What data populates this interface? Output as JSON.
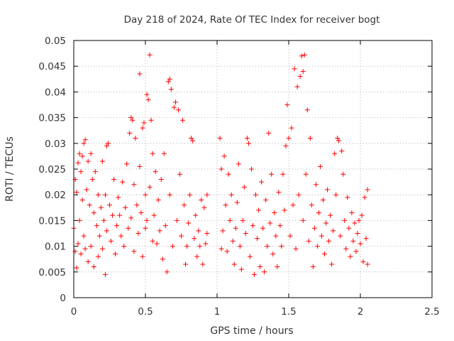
{
  "chart_data": {
    "type": "scatter",
    "title": "Day 218 of 2024, Rate Of TEC Index for receiver bogt",
    "xlabel": "GPS time / hours",
    "ylabel": "ROTI / TECUs",
    "xlim": [
      0,
      2.5
    ],
    "ylim": [
      0,
      0.05
    ],
    "xticks": [
      "0",
      "0.5",
      "1",
      "1.5",
      "2",
      "2.5"
    ],
    "xtick_values": [
      0,
      0.5,
      1,
      1.5,
      2,
      2.5
    ],
    "yticks": [
      "0",
      "0.005",
      "0.01",
      "0.015",
      "0.02",
      "0.025",
      "0.03",
      "0.035",
      "0.04",
      "0.045",
      "0.05"
    ],
    "ytick_values": [
      0,
      0.005,
      0.01,
      0.015,
      0.02,
      0.025,
      0.03,
      0.035,
      0.04,
      0.045,
      0.05
    ],
    "grid": true,
    "marker": "+",
    "color": "#ff0000",
    "series": [
      {
        "points": [
          [
            0.0,
            0.0135
          ],
          [
            0.01,
            0.009
          ],
          [
            0.01,
            0.023
          ],
          [
            0.02,
            0.0058
          ],
          [
            0.02,
            0.0205
          ],
          [
            0.03,
            0.0105
          ],
          [
            0.03,
            0.0262
          ],
          [
            0.04,
            0.015
          ],
          [
            0.04,
            0.028
          ],
          [
            0.05,
            0.0085
          ],
          [
            0.05,
            0.0245
          ],
          [
            0.06,
            0.019
          ],
          [
            0.06,
            0.0275
          ],
          [
            0.07,
            0.03
          ],
          [
            0.07,
            0.012
          ],
          [
            0.08,
            0.0307
          ],
          [
            0.08,
            0.0095
          ],
          [
            0.09,
            0.021
          ],
          [
            0.1,
            0.0265
          ],
          [
            0.1,
            0.007
          ],
          [
            0.11,
            0.018
          ],
          [
            0.12,
            0.028
          ],
          [
            0.12,
            0.01
          ],
          [
            0.13,
            0.023
          ],
          [
            0.14,
            0.0165
          ],
          [
            0.14,
            0.006
          ],
          [
            0.15,
            0.0245
          ],
          [
            0.16,
            0.014
          ],
          [
            0.17,
            0.02
          ],
          [
            0.17,
            0.008
          ],
          [
            0.18,
            0.012
          ],
          [
            0.19,
            0.0175
          ],
          [
            0.2,
            0.0265
          ],
          [
            0.2,
            0.0095
          ],
          [
            0.21,
            0.015
          ],
          [
            0.22,
            0.0045
          ],
          [
            0.22,
            0.02
          ],
          [
            0.23,
            0.0295
          ],
          [
            0.23,
            0.013
          ],
          [
            0.24,
            0.03
          ],
          [
            0.25,
            0.018
          ],
          [
            0.26,
            0.011
          ],
          [
            0.27,
            0.016
          ],
          [
            0.28,
            0.023
          ],
          [
            0.29,
            0.0085
          ],
          [
            0.3,
            0.014
          ],
          [
            0.31,
            0.0195
          ],
          [
            0.32,
            0.016
          ],
          [
            0.33,
            0.012
          ],
          [
            0.34,
            0.0225
          ],
          [
            0.35,
            0.01
          ],
          [
            0.36,
            0.0175
          ],
          [
            0.37,
            0.026
          ],
          [
            0.38,
            0.0135
          ],
          [
            0.39,
            0.032
          ],
          [
            0.4,
            0.035
          ],
          [
            0.4,
            0.0155
          ],
          [
            0.41,
            0.0345
          ],
          [
            0.42,
            0.009
          ],
          [
            0.42,
            0.022
          ],
          [
            0.43,
            0.031
          ],
          [
            0.44,
            0.018
          ],
          [
            0.45,
            0.0125
          ],
          [
            0.46,
            0.0435
          ],
          [
            0.46,
            0.0255
          ],
          [
            0.47,
            0.0165
          ],
          [
            0.48,
            0.033
          ],
          [
            0.48,
            0.008
          ],
          [
            0.49,
            0.034
          ],
          [
            0.5,
            0.02
          ],
          [
            0.5,
            0.0135
          ],
          [
            0.51,
            0.0395
          ],
          [
            0.51,
            0.015
          ],
          [
            0.52,
            0.0385
          ],
          [
            0.53,
            0.0472
          ],
          [
            0.53,
            0.0215
          ],
          [
            0.54,
            0.0345
          ],
          [
            0.55,
            0.028
          ],
          [
            0.55,
            0.011
          ],
          [
            0.56,
            0.016
          ],
          [
            0.57,
            0.0245
          ],
          [
            0.58,
            0.0105
          ],
          [
            0.59,
            0.019
          ],
          [
            0.6,
            0.013
          ],
          [
            0.61,
            0.023
          ],
          [
            0.62,
            0.0075
          ],
          [
            0.63,
            0.028
          ],
          [
            0.64,
            0.014
          ],
          [
            0.65,
            0.005
          ],
          [
            0.66,
            0.042
          ],
          [
            0.67,
            0.0425
          ],
          [
            0.67,
            0.02
          ],
          [
            0.68,
            0.0405
          ],
          [
            0.69,
            0.01
          ],
          [
            0.7,
            0.037
          ],
          [
            0.71,
            0.038
          ],
          [
            0.72,
            0.015
          ],
          [
            0.73,
            0.0365
          ],
          [
            0.74,
            0.024
          ],
          [
            0.75,
            0.012
          ],
          [
            0.76,
            0.0345
          ],
          [
            0.77,
            0.018
          ],
          [
            0.78,
            0.0065
          ],
          [
            0.79,
            0.01
          ],
          [
            0.8,
            0.0145
          ],
          [
            0.81,
            0.02
          ],
          [
            0.82,
            0.031
          ],
          [
            0.83,
            0.0305
          ],
          [
            0.84,
            0.0115
          ],
          [
            0.85,
            0.016
          ],
          [
            0.86,
            0.008
          ],
          [
            0.87,
            0.013
          ],
          [
            0.88,
            0.01
          ],
          [
            0.89,
            0.019
          ],
          [
            0.9,
            0.0065
          ],
          [
            0.91,
            0.0175
          ],
          [
            0.92,
            0.0105
          ],
          [
            0.93,
            0.02
          ],
          [
            0.93,
            0.0125
          ],
          [
            1.02,
            0.031
          ],
          [
            1.03,
            0.0095
          ],
          [
            1.03,
            0.025
          ],
          [
            1.04,
            0.013
          ],
          [
            1.05,
            0.0275
          ],
          [
            1.06,
            0.018
          ],
          [
            1.07,
            0.009
          ],
          [
            1.08,
            0.024
          ],
          [
            1.09,
            0.015
          ],
          [
            1.1,
            0.02
          ],
          [
            1.11,
            0.011
          ],
          [
            1.12,
            0.0065
          ],
          [
            1.13,
            0.0135
          ],
          [
            1.14,
            0.0185
          ],
          [
            1.15,
            0.026
          ],
          [
            1.16,
            0.01
          ],
          [
            1.17,
            0.0055
          ],
          [
            1.18,
            0.015
          ],
          [
            1.19,
            0.0215
          ],
          [
            1.2,
            0.0125
          ],
          [
            1.21,
            0.031
          ],
          [
            1.22,
            0.03
          ],
          [
            1.23,
            0.008
          ],
          [
            1.24,
            0.025
          ],
          [
            1.25,
            0.014
          ],
          [
            1.26,
            0.0045
          ],
          [
            1.27,
            0.02
          ],
          [
            1.28,
            0.0115
          ],
          [
            1.29,
            0.017
          ],
          [
            1.3,
            0.006
          ],
          [
            1.31,
            0.0225
          ],
          [
            1.32,
            0.0135
          ],
          [
            1.33,
            0.005
          ],
          [
            1.34,
            0.019
          ],
          [
            1.35,
            0.01
          ],
          [
            1.36,
            0.032
          ],
          [
            1.37,
            0.0145
          ],
          [
            1.38,
            0.024
          ],
          [
            1.39,
            0.0085
          ],
          [
            1.4,
            0.0165
          ],
          [
            1.41,
            0.012
          ],
          [
            1.42,
            0.006
          ],
          [
            1.43,
            0.0205
          ],
          [
            1.44,
            0.014
          ],
          [
            1.45,
            0.01
          ],
          [
            1.46,
            0.024
          ],
          [
            1.47,
            0.017
          ],
          [
            1.48,
            0.0295
          ],
          [
            1.49,
            0.0375
          ],
          [
            1.5,
            0.031
          ],
          [
            1.51,
            0.012
          ],
          [
            1.52,
            0.033
          ],
          [
            1.53,
            0.018
          ],
          [
            1.54,
            0.0445
          ],
          [
            1.55,
            0.0095
          ],
          [
            1.56,
            0.041
          ],
          [
            1.57,
            0.02
          ],
          [
            1.58,
            0.043
          ],
          [
            1.59,
            0.047
          ],
          [
            1.6,
            0.044
          ],
          [
            1.6,
            0.015
          ],
          [
            1.61,
            0.0472
          ],
          [
            1.62,
            0.024
          ],
          [
            1.63,
            0.0365
          ],
          [
            1.64,
            0.011
          ],
          [
            1.65,
            0.031
          ],
          [
            1.66,
            0.018
          ],
          [
            1.67,
            0.006
          ],
          [
            1.68,
            0.0135
          ],
          [
            1.69,
            0.022
          ],
          [
            1.7,
            0.01
          ],
          [
            1.71,
            0.0165
          ],
          [
            1.72,
            0.0255
          ],
          [
            1.73,
            0.012
          ],
          [
            1.74,
            0.019
          ],
          [
            1.75,
            0.0085
          ],
          [
            1.76,
            0.0145
          ],
          [
            1.77,
            0.021
          ],
          [
            1.78,
            0.011
          ],
          [
            1.79,
            0.016
          ],
          [
            1.8,
            0.0065
          ],
          [
            1.81,
            0.013
          ],
          [
            1.82,
            0.028
          ],
          [
            1.83,
            0.02
          ],
          [
            1.84,
            0.031
          ],
          [
            1.85,
            0.0305
          ],
          [
            1.86,
            0.012
          ],
          [
            1.87,
            0.0285
          ],
          [
            1.88,
            0.024
          ],
          [
            1.89,
            0.015
          ],
          [
            1.9,
            0.0095
          ],
          [
            1.91,
            0.0195
          ],
          [
            1.92,
            0.0135
          ],
          [
            1.93,
            0.008
          ],
          [
            1.94,
            0.0165
          ],
          [
            1.95,
            0.011
          ],
          [
            1.96,
            0.0145
          ],
          [
            1.97,
            0.009
          ],
          [
            1.98,
            0.0125
          ],
          [
            1.99,
            0.015
          ],
          [
            2.0,
            0.0105
          ],
          [
            2.01,
            0.016
          ],
          [
            2.02,
            0.007
          ],
          [
            2.03,
            0.0195
          ],
          [
            2.04,
            0.0115
          ],
          [
            2.05,
            0.021
          ],
          [
            2.05,
            0.0065
          ]
        ]
      }
    ]
  }
}
